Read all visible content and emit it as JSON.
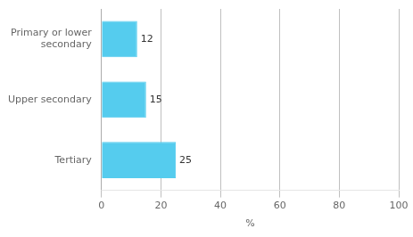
{
  "chart_data": {
    "type": "bar",
    "orientation": "horizontal",
    "categories": [
      "Primary or lower\nsecondary",
      "Upper secondary",
      "Tertiary"
    ],
    "values": [
      12,
      15,
      25
    ],
    "color": "#55CCEE",
    "xlabel": "%",
    "xlim": [
      0,
      100
    ],
    "xticks": [
      0,
      20,
      40,
      60,
      80,
      100
    ],
    "grid": true,
    "data_labels": true
  }
}
